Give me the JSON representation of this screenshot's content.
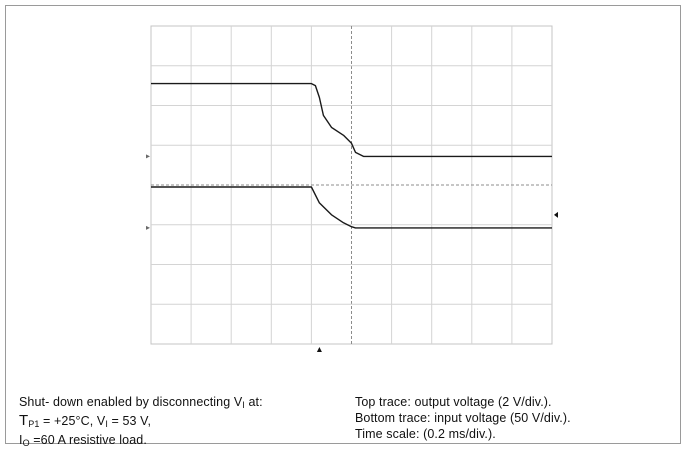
{
  "caption_left": {
    "line1_prefix": "Shut- down enabled by disconnecting V",
    "line1_sub": "I",
    "line1_suffix": " at:",
    "line2_t": "T",
    "line2_t_sub": "P1",
    "line2_mid": " = +25°C, V",
    "line2_v_sub": "I",
    "line2_end": " = 53 V,",
    "line3_i": "I",
    "line3_i_sub": "O",
    "line3_end": " =60 A resistive load."
  },
  "caption_right": {
    "line1": "Top trace: output voltage (2 V/div.).",
    "line2": "Bottom trace: input voltage (50 V/div.).",
    "line3": "Time scale: (0.2 ms/div.)."
  },
  "chart_data": {
    "type": "line",
    "grid": true,
    "x_divisions": 10,
    "y_divisions": 8,
    "series": [
      {
        "x": [
          0,
          4.0,
          4.1,
          4.2,
          4.3,
          4.5,
          4.8,
          5.0,
          5.1,
          5.3,
          10
        ],
        "y": [
          6.55,
          6.55,
          6.5,
          6.2,
          5.75,
          5.45,
          5.25,
          5.05,
          4.82,
          4.72,
          4.72
        ]
      },
      {
        "x": [
          0,
          4.0,
          4.2,
          4.5,
          4.8,
          5.0,
          5.1,
          10
        ],
        "y": [
          3.95,
          3.95,
          3.55,
          3.25,
          3.05,
          2.95,
          2.92,
          2.92
        ]
      }
    ],
    "markers": [
      "trigger-marker",
      "right-marker",
      "channel-1-ground",
      "channel-2-ground"
    ]
  }
}
